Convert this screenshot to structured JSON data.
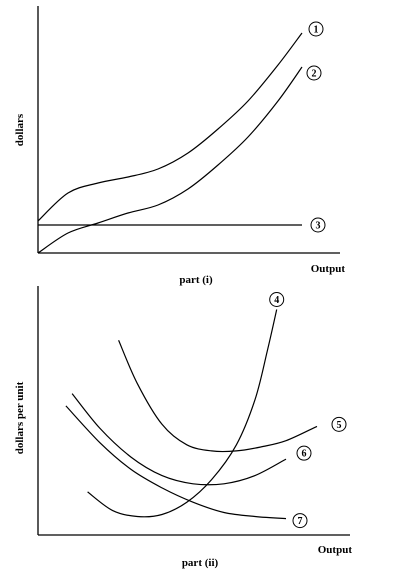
{
  "chart_data": [
    {
      "type": "line",
      "title": "part (i)",
      "xlabel": "Output",
      "ylabel": "dollars",
      "series": [
        {
          "name": "1",
          "points": [
            [
              0.0,
              0.16
            ],
            [
              0.5,
              0.3
            ],
            [
              1.0,
              0.35
            ],
            [
              1.5,
              0.38
            ],
            [
              2.0,
              0.42
            ],
            [
              2.5,
              0.5
            ],
            [
              3.0,
              0.62
            ],
            [
              3.5,
              0.76
            ],
            [
              4.0,
              0.94
            ],
            [
              4.4,
              1.1
            ]
          ]
        },
        {
          "name": "2",
          "points": [
            [
              0.0,
              0.0
            ],
            [
              0.5,
              0.1
            ],
            [
              1.0,
              0.15
            ],
            [
              1.5,
              0.2
            ],
            [
              2.0,
              0.24
            ],
            [
              2.5,
              0.32
            ],
            [
              3.0,
              0.44
            ],
            [
              3.5,
              0.58
            ],
            [
              4.0,
              0.76
            ],
            [
              4.4,
              0.93
            ]
          ]
        },
        {
          "name": "3",
          "points": [
            [
              0.0,
              0.14
            ],
            [
              4.4,
              0.14
            ]
          ]
        }
      ]
    },
    {
      "type": "line",
      "title": "part (ii)",
      "xlabel": "Output",
      "ylabel": "dollars per unit",
      "series": [
        {
          "name": "4",
          "points": [
            [
              0.8,
              0.21
            ],
            [
              1.2,
              0.12
            ],
            [
              1.6,
              0.09
            ],
            [
              2.0,
              0.1
            ],
            [
              2.4,
              0.16
            ],
            [
              2.8,
              0.27
            ],
            [
              3.2,
              0.44
            ],
            [
              3.5,
              0.66
            ],
            [
              3.7,
              0.9
            ],
            [
              3.85,
              1.1
            ]
          ]
        },
        {
          "name": "5",
          "points": [
            [
              1.3,
              0.95
            ],
            [
              1.6,
              0.74
            ],
            [
              2.0,
              0.54
            ],
            [
              2.4,
              0.44
            ],
            [
              2.8,
              0.41
            ],
            [
              3.2,
              0.41
            ],
            [
              3.6,
              0.43
            ],
            [
              4.0,
              0.46
            ],
            [
              4.5,
              0.53
            ]
          ]
        },
        {
          "name": "6",
          "points": [
            [
              0.55,
              0.69
            ],
            [
              1.0,
              0.52
            ],
            [
              1.5,
              0.38
            ],
            [
              2.0,
              0.29
            ],
            [
              2.5,
              0.25
            ],
            [
              3.0,
              0.25
            ],
            [
              3.5,
              0.29
            ],
            [
              4.0,
              0.37
            ]
          ]
        },
        {
          "name": "7",
          "points": [
            [
              0.45,
              0.63
            ],
            [
              1.0,
              0.45
            ],
            [
              1.5,
              0.32
            ],
            [
              2.0,
              0.23
            ],
            [
              2.5,
              0.16
            ],
            [
              3.0,
              0.11
            ],
            [
              3.5,
              0.09
            ],
            [
              4.0,
              0.08
            ]
          ]
        }
      ]
    }
  ]
}
